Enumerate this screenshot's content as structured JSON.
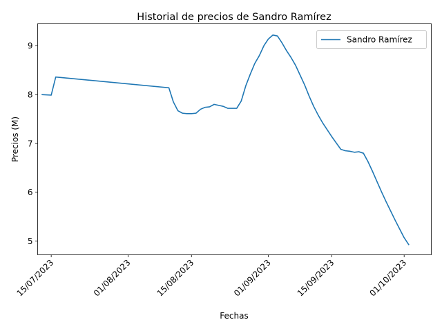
{
  "chart_data": {
    "type": "line",
    "title": "Historial de precios de Sandro Ramírez",
    "xlabel": "Fechas",
    "ylabel": "Precios (M)",
    "x_tick_labels": [
      "15/07/2023",
      "01/08/2023",
      "15/08/2023",
      "01/09/2023",
      "15/09/2023",
      "01/10/2023"
    ],
    "x_ticks": [
      "2023-07-15",
      "2023-08-01",
      "2023-08-15",
      "2023-09-01",
      "2023-09-15",
      "2023-10-01"
    ],
    "y_ticks": [
      5,
      6,
      7,
      8,
      9
    ],
    "xlim": [
      "2023-07-12",
      "2023-10-07"
    ],
    "ylim": [
      4.72,
      9.45
    ],
    "grid": false,
    "legend": {
      "placement": "top-right",
      "entries": [
        "Sandro Ramírez"
      ]
    },
    "series": [
      {
        "name": "Sandro Ramírez",
        "color": "#1f77b4",
        "points": [
          [
            "2023-07-13",
            8.0
          ],
          [
            "2023-07-15",
            7.99
          ],
          [
            "2023-07-16",
            8.36
          ],
          [
            "2023-08-10",
            8.14
          ],
          [
            "2023-08-11",
            7.85
          ],
          [
            "2023-08-12",
            7.67
          ],
          [
            "2023-08-13",
            7.62
          ],
          [
            "2023-08-14",
            7.61
          ],
          [
            "2023-08-15",
            7.61
          ],
          [
            "2023-08-16",
            7.62
          ],
          [
            "2023-08-17",
            7.7
          ],
          [
            "2023-08-18",
            7.74
          ],
          [
            "2023-08-19",
            7.75
          ],
          [
            "2023-08-20",
            7.8
          ],
          [
            "2023-08-21",
            7.78
          ],
          [
            "2023-08-22",
            7.76
          ],
          [
            "2023-08-23",
            7.72
          ],
          [
            "2023-08-24",
            7.72
          ],
          [
            "2023-08-25",
            7.72
          ],
          [
            "2023-08-26",
            7.87
          ],
          [
            "2023-08-27",
            8.18
          ],
          [
            "2023-08-28",
            8.42
          ],
          [
            "2023-08-29",
            8.64
          ],
          [
            "2023-08-30",
            8.8
          ],
          [
            "2023-08-31",
            9.0
          ],
          [
            "2023-09-01",
            9.14
          ],
          [
            "2023-09-02",
            9.22
          ],
          [
            "2023-09-03",
            9.2
          ],
          [
            "2023-09-04",
            9.06
          ],
          [
            "2023-09-05",
            8.9
          ],
          [
            "2023-09-06",
            8.76
          ],
          [
            "2023-09-07",
            8.6
          ],
          [
            "2023-09-08",
            8.4
          ],
          [
            "2023-09-09",
            8.2
          ],
          [
            "2023-09-10",
            7.97
          ],
          [
            "2023-09-11",
            7.76
          ],
          [
            "2023-09-12",
            7.58
          ],
          [
            "2023-09-13",
            7.42
          ],
          [
            "2023-09-14",
            7.28
          ],
          [
            "2023-09-15",
            7.14
          ],
          [
            "2023-09-16",
            7.01
          ],
          [
            "2023-09-17",
            6.88
          ],
          [
            "2023-09-18",
            6.85
          ],
          [
            "2023-09-19",
            6.84
          ],
          [
            "2023-09-20",
            6.82
          ],
          [
            "2023-09-21",
            6.83
          ],
          [
            "2023-09-22",
            6.8
          ],
          [
            "2023-09-23",
            6.63
          ],
          [
            "2023-09-24",
            6.43
          ],
          [
            "2023-09-25",
            6.22
          ],
          [
            "2023-09-26",
            6.01
          ],
          [
            "2023-09-27",
            5.81
          ],
          [
            "2023-09-28",
            5.62
          ],
          [
            "2023-09-29",
            5.43
          ],
          [
            "2023-09-30",
            5.25
          ],
          [
            "2023-10-01",
            5.07
          ],
          [
            "2023-10-02",
            4.93
          ]
        ]
      }
    ]
  }
}
